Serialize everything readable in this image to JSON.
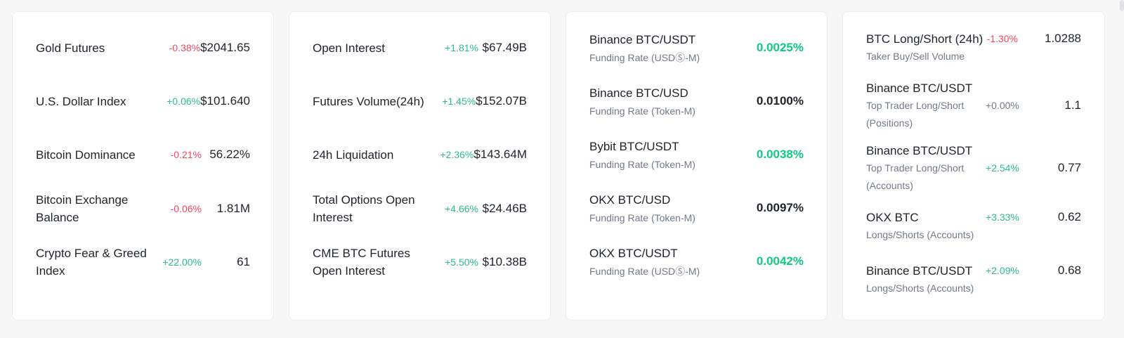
{
  "market": [
    {
      "name": "Gold Futures",
      "change": "-0.38%",
      "dir": "down",
      "value": "$2041.65"
    },
    {
      "name": "U.S. Dollar Index",
      "change": "+0.06%",
      "dir": "up",
      "value": "$101.640"
    },
    {
      "name": "Bitcoin Dominance",
      "change": "-0.21%",
      "dir": "down",
      "value": "56.22%"
    },
    {
      "name": "Bitcoin Exchange Balance",
      "change": "-0.06%",
      "dir": "down",
      "value": "1.81M"
    },
    {
      "name": "Crypto Fear & Greed Index",
      "change": "+22.00%",
      "dir": "up",
      "value": "61"
    }
  ],
  "derivatives": [
    {
      "name": "Open Interest",
      "change": "+1.81%",
      "dir": "up",
      "value": "$67.49B"
    },
    {
      "name": "Futures Volume(24h)",
      "change": "+1.45%",
      "dir": "up",
      "value": "$152.07B"
    },
    {
      "name": "24h Liquidation",
      "change": "+2.36%",
      "dir": "up",
      "value": "$143.64M"
    },
    {
      "name": "Total Options Open Interest",
      "change": "+4.66%",
      "dir": "up",
      "value": "$24.46B"
    },
    {
      "name": "CME BTC Futures Open Interest",
      "change": "+5.50%",
      "dir": "up",
      "value": "$10.38B"
    }
  ],
  "funding": [
    {
      "name": "Binance BTC/USDT",
      "sub": "Funding Rate (USDⓈ-M)",
      "value": "0.0025%",
      "tone": "pos"
    },
    {
      "name": "Binance BTC/USD",
      "sub": "Funding Rate (Token-M)",
      "value": "0.0100%",
      "tone": "neutral"
    },
    {
      "name": "Bybit BTC/USDT",
      "sub": "Funding Rate (Token-M)",
      "value": "0.0038%",
      "tone": "pos"
    },
    {
      "name": "OKX BTC/USD",
      "sub": "Funding Rate (Token-M)",
      "value": "0.0097%",
      "tone": "neutral"
    },
    {
      "name": "OKX BTC/USDT",
      "sub": "Funding Rate (USDⓈ-M)",
      "value": "0.0042%",
      "tone": "pos"
    }
  ],
  "long_short": [
    {
      "name": "BTC Long/Short (24h)",
      "sub": "Taker Buy/Sell Volume",
      "change": "-1.30%",
      "dir": "down",
      "value": "1.0288"
    },
    {
      "name": "Binance BTC/USDT",
      "sub": "Top Trader Long/Short (Positions)",
      "change": "+0.00%",
      "dir": "neutral",
      "value": "1.1"
    },
    {
      "name": "Binance BTC/USDT",
      "sub": "Top Trader Long/Short (Accounts)",
      "change": "+2.54%",
      "dir": "up",
      "value": "0.77"
    },
    {
      "name": "OKX BTC",
      "sub": "Longs/Shorts (Accounts)",
      "change": "+3.33%",
      "dir": "up",
      "value": "0.62"
    },
    {
      "name": "Binance BTC/USDT",
      "sub": "Longs/Shorts (Accounts)",
      "change": "+2.09%",
      "dir": "up",
      "value": "0.68"
    }
  ],
  "colors": {
    "up": "#2ebd85",
    "down": "#f6465d",
    "muted": "#707a8a",
    "text": "#1e2329"
  }
}
